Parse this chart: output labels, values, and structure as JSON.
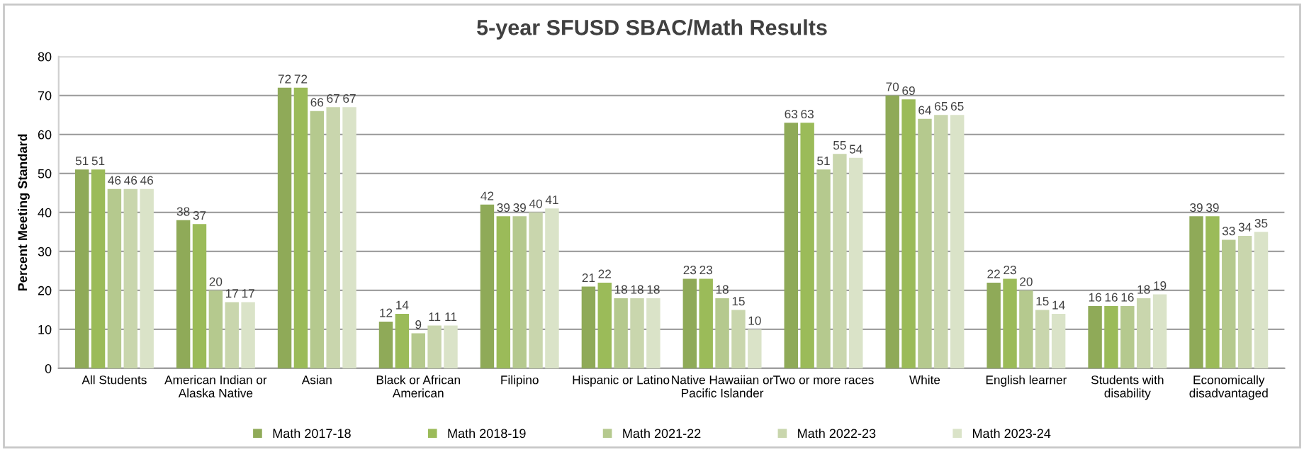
{
  "chart_data": {
    "type": "bar",
    "title": "5-year SFUSD SBAC/Math Results",
    "ylabel": "Percent Meeting Standard",
    "categories": [
      "All Students",
      "American Indian or\nAlaska Native",
      "Asian",
      "Black or African\nAmerican",
      "Filipino",
      "Hispanic or Latino",
      "Native Hawaiian or\nPacific Islander",
      "Two or more races",
      "White",
      "English learner",
      "Students with\ndisability",
      "Economically\ndisadvantaged"
    ],
    "series": [
      {
        "name": "Math 2017-18",
        "color": "#8faa58",
        "values": [
          51,
          38,
          72,
          12,
          42,
          21,
          23,
          63,
          70,
          22,
          16,
          39
        ]
      },
      {
        "name": "Math 2018-19",
        "color": "#9bbb59",
        "values": [
          51,
          37,
          72,
          14,
          39,
          22,
          23,
          63,
          69,
          23,
          16,
          39
        ]
      },
      {
        "name": "Math 2021-22",
        "color": "#b5c98e",
        "values": [
          46,
          20,
          66,
          9,
          39,
          18,
          18,
          51,
          64,
          20,
          16,
          33
        ]
      },
      {
        "name": "Math 2022-23",
        "color": "#c9d6ad",
        "values": [
          46,
          17,
          67,
          11,
          40,
          18,
          15,
          55,
          65,
          15,
          18,
          34
        ]
      },
      {
        "name": "Math 2023-24",
        "color": "#dae3c8",
        "values": [
          46,
          17,
          67,
          11,
          41,
          18,
          10,
          54,
          65,
          14,
          19,
          35
        ]
      }
    ],
    "ylim": [
      0,
      80
    ],
    "yticks": [
      0,
      10,
      20,
      30,
      40,
      50,
      60,
      70,
      80
    ],
    "grid": "y",
    "legend": "bottom",
    "data_labels": true
  }
}
